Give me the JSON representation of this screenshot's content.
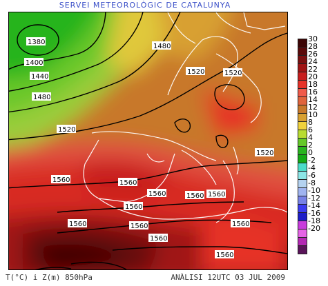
{
  "title": "SERVEI METEOROLÒGIC DE CATALUNYA",
  "footer_left": "T(°C) i Z(m) 850hPa",
  "footer_right": "ANÀLISI 12UTC 03 JUL 2009",
  "legend": {
    "levels": [
      {
        "label": "30",
        "color": "#3d0606"
      },
      {
        "label": "28",
        "color": "#5a0a0a"
      },
      {
        "label": "26",
        "color": "#7a1010"
      },
      {
        "label": "24",
        "color": "#a01414"
      },
      {
        "label": "22",
        "color": "#c81e1e"
      },
      {
        "label": "20",
        "color": "#e63228"
      },
      {
        "label": "18",
        "color": "#f05a4a"
      },
      {
        "label": "16",
        "color": "#e0643c"
      },
      {
        "label": "14",
        "color": "#c8782a"
      },
      {
        "label": "12",
        "color": "#d8a030"
      },
      {
        "label": "10",
        "color": "#f0d23c"
      },
      {
        "label": "8",
        "color": "#b8dc32"
      },
      {
        "label": "6",
        "color": "#64c828"
      },
      {
        "label": "4",
        "color": "#28b41e"
      },
      {
        "label": "2",
        "color": "#14aa14"
      },
      {
        "label": "0",
        "color": "#4bdcc8"
      },
      {
        "label": "-2",
        "color": "#8ce6e6"
      },
      {
        "label": "-4",
        "color": "#b4d2f0"
      },
      {
        "label": "-6",
        "color": "#a0b4f0"
      },
      {
        "label": "-8",
        "color": "#7882e6"
      },
      {
        "label": "-10",
        "color": "#3c3cf0"
      },
      {
        "label": "-12",
        "color": "#1e1ec8"
      },
      {
        "label": "-14",
        "color": "#c83cdc"
      },
      {
        "label": "-16",
        "color": "#e664e6"
      },
      {
        "label": "-18",
        "color": "#b428b4"
      },
      {
        "label": "-20",
        "color": "#5a145a"
      }
    ]
  },
  "contour_labels": [
    {
      "id": "z1380",
      "text": "1380"
    },
    {
      "id": "z1400",
      "text": "1400"
    },
    {
      "id": "z1440",
      "text": "1440"
    },
    {
      "id": "z1480a",
      "text": "1480"
    },
    {
      "id": "z1480b",
      "text": "1480"
    },
    {
      "id": "z1520a",
      "text": "1520"
    },
    {
      "id": "z1520b",
      "text": "1520"
    },
    {
      "id": "z1520c",
      "text": "1520"
    },
    {
      "id": "z1520d",
      "text": "1520"
    },
    {
      "id": "z1560a",
      "text": "1560"
    },
    {
      "id": "z1560b",
      "text": "1560"
    },
    {
      "id": "z1560c",
      "text": "1560"
    },
    {
      "id": "z1560d",
      "text": "1560"
    },
    {
      "id": "z1560e",
      "text": "1560"
    },
    {
      "id": "z1560f",
      "text": "1560"
    },
    {
      "id": "z1560g",
      "text": "1560"
    },
    {
      "id": "z1560h",
      "text": "1560"
    },
    {
      "id": "z1560i",
      "text": "1560"
    },
    {
      "id": "z1560j",
      "text": "1560"
    },
    {
      "id": "z1560k",
      "text": "1560"
    }
  ]
}
